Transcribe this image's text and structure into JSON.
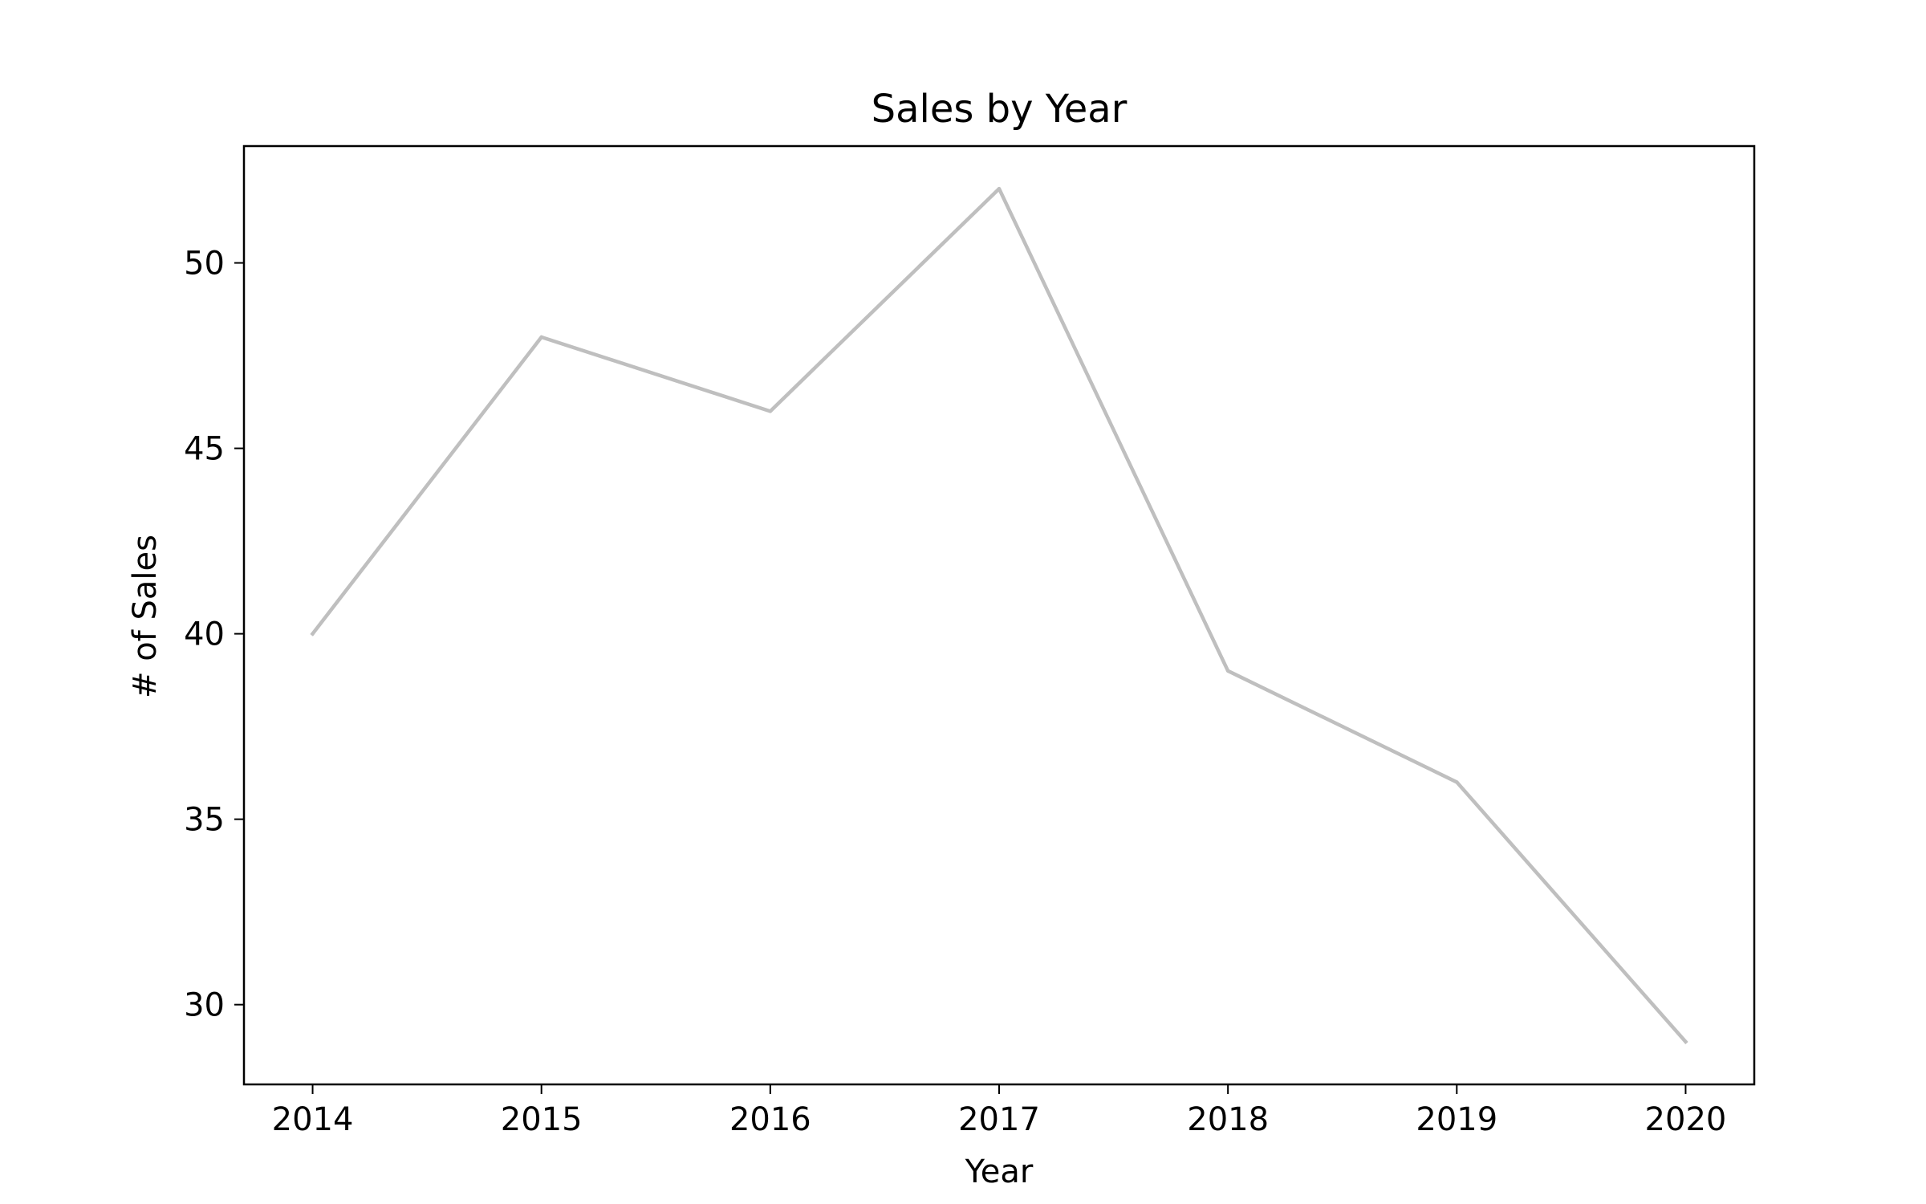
{
  "chart_data": {
    "type": "line",
    "title": "Sales by Year",
    "xlabel": "Year",
    "ylabel": "# of Sales",
    "x": [
      2014,
      2015,
      2016,
      2017,
      2018,
      2019,
      2020
    ],
    "series": [
      {
        "values": [
          40,
          48,
          46,
          52,
          39,
          36,
          29
        ],
        "color": "#bfbfbf"
      }
    ],
    "x_tick_labels": [
      "2014",
      "2015",
      "2016",
      "2017",
      "2018",
      "2019",
      "2020"
    ],
    "y_ticks": [
      30,
      35,
      40,
      45,
      50
    ],
    "y_tick_labels": [
      "30",
      "35",
      "40",
      "45",
      "50"
    ],
    "xlim": [
      2013.7,
      2020.3
    ],
    "ylim": [
      27.85,
      53.15
    ],
    "grid": false,
    "legend": "none"
  }
}
